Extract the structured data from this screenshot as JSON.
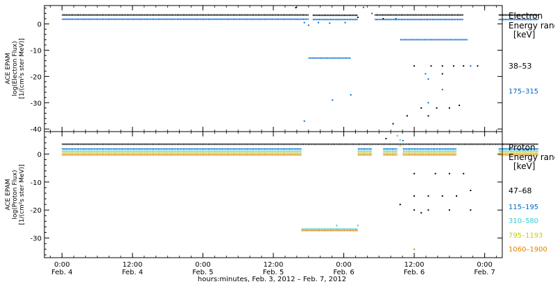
{
  "chart_data": [
    {
      "type": "scatter",
      "panel": "electron",
      "ylabel_lines": [
        "ACE EPAM",
        "log(Electron Flux)",
        "[1/(cm²s ster MeV)]"
      ],
      "yticks": [
        0,
        -10,
        -20,
        -30,
        -40
      ],
      "ylim": [
        -41,
        7
      ],
      "legend_title": [
        "Electron",
        "Energy ranges",
        "[keV]"
      ],
      "series": [
        {
          "name": "38–53",
          "color": "#000000",
          "segments": [
            [
              0,
              1.75,
              3.4
            ],
            [
              1.78,
              2.1,
              3.3
            ],
            [
              2.22,
              2.85,
              3.4
            ],
            [
              3.1,
              3.38,
              3.4
            ]
          ],
          "scatter": [
            [
              1.66,
              6.2
            ],
            [
              2.1,
              2.5
            ],
            [
              2.28,
              2.0
            ],
            [
              2.5,
              -16
            ],
            [
              2.62,
              -16
            ],
            [
              2.7,
              -16
            ],
            [
              2.78,
              -16
            ],
            [
              2.85,
              -16
            ],
            [
              2.55,
              -32
            ],
            [
              2.66,
              -32
            ],
            [
              2.75,
              -32
            ],
            [
              2.82,
              -31
            ],
            [
              2.35,
              -38
            ],
            [
              2.45,
              -35
            ],
            [
              2.6,
              -35
            ],
            [
              2.7,
              -19
            ],
            [
              2.95,
              -16
            ]
          ]
        },
        {
          "name": "175–315",
          "color": "#0066cc",
          "segments": [
            [
              0,
              1.75,
              1.8
            ],
            [
              1.78,
              2.1,
              1.7
            ],
            [
              2.22,
              2.85,
              1.7
            ],
            [
              3.1,
              3.38,
              1.7
            ],
            [
              1.75,
              2.05,
              -13
            ],
            [
              2.4,
              2.88,
              -6
            ]
          ],
          "scatter": [
            [
              1.72,
              0.5
            ],
            [
              1.75,
              -0.5
            ],
            [
              1.82,
              0.5
            ],
            [
              1.9,
              0.3
            ],
            [
              2.01,
              0.5
            ],
            [
              2.14,
              6.3
            ],
            [
              2.2,
              4.0
            ],
            [
              2.58,
              -19
            ],
            [
              2.6,
              -21
            ],
            [
              2.7,
              -25
            ],
            [
              2.9,
              -16
            ],
            [
              1.92,
              -29
            ],
            [
              1.72,
              -37
            ],
            [
              2.05,
              -27
            ],
            [
              2.6,
              -30
            ],
            [
              2.37,
              2.0
            ]
          ]
        }
      ]
    },
    {
      "type": "scatter",
      "panel": "proton",
      "ylabel_lines": [
        "ACE EPAM",
        "log(Proton Flux)",
        "[1/(cm²s ster MeV)]"
      ],
      "yticks": [
        0,
        -10,
        -20,
        -30
      ],
      "ylim": [
        -37,
        8
      ],
      "legend_title": [
        "Proton",
        "Energy ranges",
        "[keV]"
      ],
      "series": [
        {
          "name": "47–68",
          "color": "#000000",
          "segments": [
            [
              0,
              3.38,
              3.5
            ]
          ],
          "scatter": [
            [
              2.5,
              -7
            ],
            [
              2.65,
              -7
            ],
            [
              2.75,
              -7
            ],
            [
              2.85,
              -7
            ],
            [
              2.5,
              -15
            ],
            [
              2.6,
              -15
            ],
            [
              2.7,
              -15
            ],
            [
              2.8,
              -15
            ],
            [
              2.5,
              -20
            ],
            [
              2.6,
              -20
            ],
            [
              2.9,
              -20
            ],
            [
              2.75,
              -20
            ],
            [
              2.55,
              -21
            ],
            [
              2.4,
              -18
            ],
            [
              2.9,
              -13
            ],
            [
              2.3,
              5.5
            ]
          ]
        },
        {
          "name": "115–195",
          "color": "#0066cc",
          "segments": [
            [
              0,
              1.7,
              1.8
            ],
            [
              2.1,
              2.2,
              1.8
            ],
            [
              2.28,
              2.38,
              1.8
            ],
            [
              2.42,
              2.8,
              1.8
            ],
            [
              3.1,
              3.38,
              1.8
            ]
          ],
          "scatter": [
            [
              2.42,
              4.8
            ]
          ]
        },
        {
          "name": "310–580",
          "color": "#33cccc",
          "segments": [
            [
              0,
              1.7,
              1.0
            ],
            [
              2.1,
              2.2,
              1.0
            ],
            [
              2.28,
              2.38,
              1.0
            ],
            [
              2.42,
              2.8,
              1.0
            ],
            [
              3.1,
              3.38,
              1.0
            ],
            [
              1.7,
              2.1,
              -26.8
            ]
          ],
          "scatter": [
            [
              2.38,
              6.5
            ],
            [
              1.95,
              -25.5
            ],
            [
              2.1,
              -25.5
            ],
            [
              2.4,
              5.0
            ]
          ]
        },
        {
          "name": "795–1193",
          "color": "#cccc00",
          "segments": [
            [
              0,
              1.7,
              0.3
            ],
            [
              2.1,
              2.2,
              0.3
            ],
            [
              2.28,
              2.38,
              0.3
            ],
            [
              2.42,
              2.8,
              0.3
            ],
            [
              3.1,
              3.38,
              0.3
            ]
          ],
          "scatter": [
            [
              2.4,
              3.0
            ]
          ]
        },
        {
          "name": "1060–1900",
          "color": "#e08000",
          "segments": [
            [
              0,
              1.7,
              -0.3
            ],
            [
              2.1,
              2.2,
              -0.3
            ],
            [
              2.28,
              2.38,
              -0.3
            ],
            [
              2.42,
              2.8,
              -0.3
            ],
            [
              3.1,
              3.38,
              -0.3
            ],
            [
              1.7,
              2.1,
              -27.3
            ]
          ],
          "scatter": [
            [
              2.5,
              -34
            ]
          ]
        }
      ]
    }
  ],
  "xaxis": {
    "xlim": [
      -0.125,
      3.125
    ],
    "ticks": [
      {
        "x": 0,
        "time": "0:00",
        "date": "Feb. 4"
      },
      {
        "x": 0.5,
        "time": "12:00",
        "date": "Feb. 4"
      },
      {
        "x": 1,
        "time": "0:00",
        "date": "Feb. 5"
      },
      {
        "x": 1.5,
        "time": "12:00",
        "date": "Feb. 5"
      },
      {
        "x": 2,
        "time": "0:00",
        "date": "Feb. 6"
      },
      {
        "x": 2.5,
        "time": "12:00",
        "date": "Feb. 6"
      },
      {
        "x": 3,
        "time": "0:00",
        "date": "Feb. 7"
      }
    ],
    "label": "hours:minutes, Feb.  3, 2012 – Feb.  7, 2012"
  }
}
